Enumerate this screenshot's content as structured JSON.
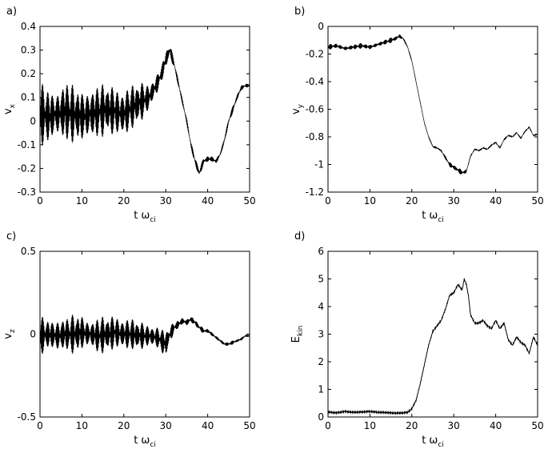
{
  "chart_data": [
    {
      "panel": "a)",
      "type": "line",
      "xlabel": "t ω",
      "xlabel_sub": "ci",
      "ylabel": "v",
      "ylabel_sub": "x",
      "xlim": [
        0,
        50
      ],
      "ylim": [
        -0.3,
        0.4
      ],
      "xticks": [
        0,
        10,
        20,
        30,
        40,
        50
      ],
      "yticks": [
        -0.3,
        -0.2,
        -0.1,
        0,
        0.1,
        0.2,
        0.3,
        0.4
      ],
      "ytick_labels": [
        "-0.3",
        "-0.2",
        "-0.1",
        "0",
        "0.1",
        "0.2",
        "0.3",
        "0.4"
      ],
      "grid": false,
      "oscillation": true,
      "series": [
        {
          "x": [
            0,
            2,
            4,
            6,
            8,
            10,
            12,
            14,
            16,
            18,
            20,
            22,
            24,
            26,
            28,
            29,
            30,
            31,
            32,
            33,
            34,
            35,
            36,
            37,
            38,
            39,
            40,
            41,
            42,
            43,
            44,
            45,
            46,
            47,
            48,
            49,
            50
          ],
          "center": [
            0.03,
            0.02,
            0.03,
            0.04,
            0.03,
            0.02,
            0.03,
            0.04,
            0.05,
            0.04,
            0.03,
            0.06,
            0.08,
            0.1,
            0.16,
            0.2,
            0.26,
            0.3,
            0.24,
            0.16,
            0.08,
            0.0,
            -0.1,
            -0.17,
            -0.22,
            -0.17,
            -0.16,
            -0.16,
            -0.17,
            -0.14,
            -0.08,
            0.0,
            0.05,
            0.1,
            0.14,
            0.15,
            0.15
          ],
          "amplitude": [
            0.13,
            0.14,
            0.12,
            0.15,
            0.12,
            0.13,
            0.14,
            0.12,
            0.11,
            0.13,
            0.12,
            0.1,
            0.09,
            0.07,
            0.05,
            0.04,
            0.04,
            0.03,
            0.02,
            0.02,
            0.02,
            0.02,
            0.02,
            0.02,
            0.02,
            0.015,
            0.015,
            0.015,
            0.015,
            0.015,
            0.015,
            0.015,
            0.015,
            0.015,
            0.012,
            0.012,
            0.012
          ]
        }
      ]
    },
    {
      "panel": "b)",
      "type": "line",
      "xlabel": "t ω",
      "xlabel_sub": "ci",
      "ylabel": "v",
      "ylabel_sub": "y",
      "xlim": [
        0,
        50
      ],
      "ylim": [
        -1.2,
        0
      ],
      "xticks": [
        0,
        10,
        20,
        30,
        40,
        50
      ],
      "yticks": [
        -1.2,
        -1,
        -0.8,
        -0.6,
        -0.4,
        -0.2,
        0
      ],
      "ytick_labels": [
        "-1.2",
        "-1",
        "-0.8",
        "-0.6",
        "-0.4",
        "-0.2",
        "0"
      ],
      "grid": false,
      "oscillation": true,
      "series": [
        {
          "x": [
            0,
            2,
            4,
            6,
            8,
            10,
            12,
            14,
            16,
            17,
            18,
            19,
            20,
            21,
            22,
            23,
            24,
            25,
            26,
            27,
            28,
            29,
            30,
            31,
            32,
            33,
            34,
            35,
            36,
            37,
            38,
            39,
            40,
            41,
            42,
            43,
            44,
            45,
            46,
            47,
            48,
            49,
            50
          ],
          "center": [
            -0.15,
            -0.14,
            -0.16,
            -0.15,
            -0.14,
            -0.15,
            -0.13,
            -0.11,
            -0.09,
            -0.07,
            -0.09,
            -0.15,
            -0.25,
            -0.4,
            -0.55,
            -0.7,
            -0.8,
            -0.87,
            -0.88,
            -0.9,
            -0.95,
            -1.0,
            -1.02,
            -1.04,
            -1.06,
            -1.05,
            -0.94,
            -0.89,
            -0.9,
            -0.88,
            -0.89,
            -0.86,
            -0.84,
            -0.88,
            -0.82,
            -0.79,
            -0.8,
            -0.77,
            -0.81,
            -0.76,
            -0.73,
            -0.79,
            -0.78
          ],
          "amplitude": [
            0.02,
            0.02,
            0.02,
            0.02,
            0.02,
            0.02,
            0.02,
            0.02,
            0.02,
            0.015,
            0.015,
            0.01,
            0.008,
            0.006,
            0.005,
            0.005,
            0.006,
            0.01,
            0.01,
            0.01,
            0.015,
            0.02,
            0.02,
            0.02,
            0.02,
            0.015,
            0.01,
            0.008,
            0.008,
            0.006,
            0.006,
            0.006,
            0.006,
            0.006,
            0.006,
            0.006,
            0.006,
            0.006,
            0.006,
            0.006,
            0.006,
            0.006,
            0.006
          ]
        }
      ]
    },
    {
      "panel": "c)",
      "type": "line",
      "xlabel": "t ω",
      "xlabel_sub": "ci",
      "ylabel": "v",
      "ylabel_sub": "z",
      "xlim": [
        0,
        50
      ],
      "ylim": [
        -0.5,
        0.5
      ],
      "xticks": [
        0,
        10,
        20,
        30,
        40,
        50
      ],
      "yticks": [
        -0.5,
        0,
        0.5
      ],
      "ytick_labels": [
        "-0.5",
        "0",
        "0.5"
      ],
      "grid": false,
      "oscillation": true,
      "series": [
        {
          "x": [
            0,
            2,
            4,
            6,
            8,
            10,
            12,
            14,
            16,
            18,
            20,
            22,
            24,
            26,
            28,
            30,
            31,
            32,
            33,
            34,
            35,
            36,
            37,
            38,
            39,
            40,
            41,
            42,
            43,
            44,
            45,
            46,
            47,
            48,
            49,
            50
          ],
          "center": [
            -0.01,
            0.0,
            -0.01,
            0.0,
            0.0,
            0.01,
            0.0,
            -0.01,
            0.0,
            0.01,
            0.0,
            0.0,
            -0.01,
            -0.01,
            -0.02,
            -0.06,
            0.0,
            0.04,
            0.06,
            0.08,
            0.07,
            0.09,
            0.07,
            0.04,
            0.02,
            0.02,
            0.0,
            -0.02,
            -0.04,
            -0.06,
            -0.06,
            -0.05,
            -0.04,
            -0.03,
            -0.01,
            -0.01
          ],
          "amplitude": [
            0.12,
            0.1,
            0.13,
            0.11,
            0.12,
            0.13,
            0.1,
            0.12,
            0.11,
            0.13,
            0.11,
            0.1,
            0.09,
            0.08,
            0.08,
            0.09,
            0.05,
            0.035,
            0.03,
            0.03,
            0.025,
            0.025,
            0.02,
            0.02,
            0.015,
            0.015,
            0.015,
            0.015,
            0.015,
            0.012,
            0.012,
            0.012,
            0.01,
            0.01,
            0.01,
            0.01
          ]
        }
      ]
    },
    {
      "panel": "d)",
      "type": "line",
      "xlabel": "t ω",
      "xlabel_sub": "ci",
      "ylabel": "E",
      "ylabel_sub": "kin",
      "xlim": [
        0,
        50
      ],
      "ylim": [
        0,
        6
      ],
      "xticks": [
        0,
        10,
        20,
        30,
        40,
        50
      ],
      "yticks": [
        0,
        1,
        2,
        3,
        4,
        5,
        6
      ],
      "ytick_labels": [
        "0",
        "1",
        "2",
        "3",
        "4",
        "5",
        "6"
      ],
      "grid": false,
      "oscillation": false,
      "series": [
        {
          "x": [
            0,
            2,
            4,
            6,
            8,
            10,
            12,
            14,
            16,
            18,
            19,
            20,
            21,
            22,
            23,
            24,
            25,
            26,
            27,
            28,
            29,
            30,
            31,
            32,
            32.5,
            33,
            33.5,
            34,
            35,
            36,
            37,
            38,
            39,
            40,
            41,
            42,
            43,
            44,
            45,
            46,
            47,
            48,
            49,
            50
          ],
          "y": [
            0.18,
            0.15,
            0.2,
            0.17,
            0.18,
            0.2,
            0.17,
            0.16,
            0.14,
            0.15,
            0.17,
            0.3,
            0.6,
            1.2,
            1.9,
            2.6,
            3.1,
            3.3,
            3.5,
            3.9,
            4.4,
            4.5,
            4.8,
            4.6,
            5.0,
            4.8,
            4.4,
            3.7,
            3.4,
            3.4,
            3.5,
            3.3,
            3.2,
            3.5,
            3.2,
            3.4,
            2.8,
            2.6,
            2.9,
            2.7,
            2.6,
            2.3,
            2.9,
            2.6
          ]
        }
      ]
    }
  ]
}
